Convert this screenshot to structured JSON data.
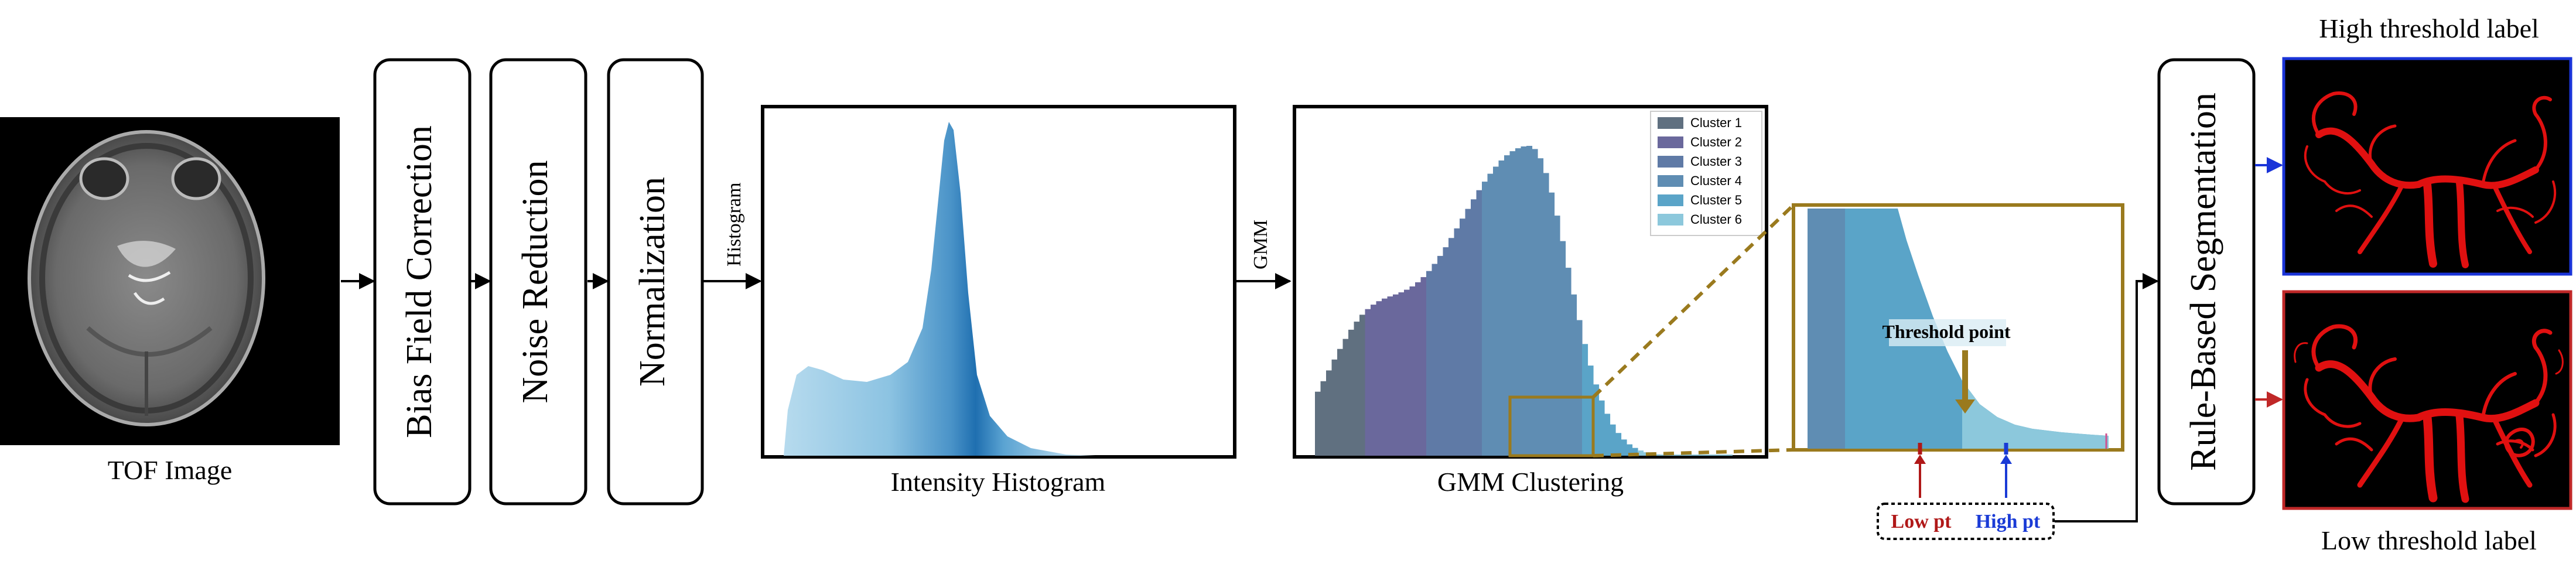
{
  "tof": {
    "caption": "TOF Image"
  },
  "steps": [
    {
      "label": "Bias Field Correction"
    },
    {
      "label": "Noise Reduction"
    },
    {
      "label": "Normalization"
    }
  ],
  "arrow_labels": {
    "histogram": "Histogram",
    "gmm": "GMM"
  },
  "histogram_panel": {
    "caption": "Intensity Histogram",
    "color_dark": "#1f6fb0",
    "color_light": "#a9d3ea"
  },
  "gmm_panel": {
    "caption": "GMM Clustering",
    "legend": [
      {
        "name": "Cluster 1",
        "color": "#607080"
      },
      {
        "name": "Cluster 2",
        "color": "#6a689c"
      },
      {
        "name": "Cluster 3",
        "color": "#5f7aa6"
      },
      {
        "name": "Cluster 4",
        "color": "#5f8db3"
      },
      {
        "name": "Cluster 5",
        "color": "#5aa4c8"
      },
      {
        "name": "Cluster 6",
        "color": "#8cc8dc"
      }
    ]
  },
  "zoom": {
    "threshold_text": "Threshold point",
    "frame_color": "#9a7a1e",
    "low_pt": "Low pt",
    "high_pt": "High pt",
    "low_color": "#b01818",
    "high_color": "#1a3bd6"
  },
  "segmentation": {
    "label": "Rule-Based Segmentation"
  },
  "outputs": {
    "high_label": "High threshold label",
    "low_label": "Low threshold label",
    "high_border": "#1a34d8",
    "low_border": "#c02828",
    "vessel_color": "#e01010"
  }
}
